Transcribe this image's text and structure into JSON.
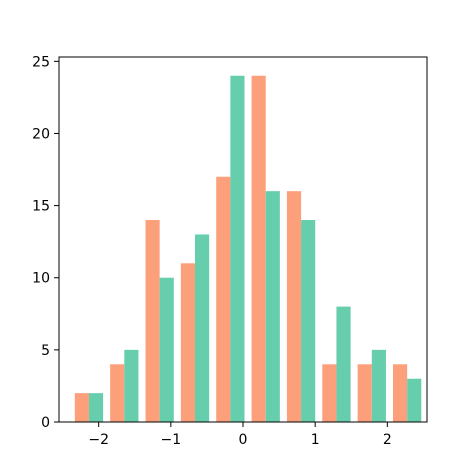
{
  "chart_data": {
    "type": "bar",
    "title": "",
    "xlabel": "",
    "ylabel": "",
    "grid": false,
    "legend": "none",
    "xlim": [
      -2.55,
      2.55
    ],
    "ylim": [
      0,
      25.3
    ],
    "xticks": [
      -2,
      -1,
      0,
      1,
      2
    ],
    "xtick_labels": [
      "−2",
      "−1",
      "0",
      "1",
      "2"
    ],
    "yticks": [
      0,
      5,
      10,
      15,
      20,
      25
    ],
    "ytick_labels": [
      "0",
      "5",
      "10",
      "15",
      "20",
      "25"
    ],
    "bin_edges": [
      -2.38,
      -1.89,
      -1.4,
      -0.91,
      -0.42,
      0.07,
      0.56,
      1.05,
      1.54,
      2.03,
      2.52
    ],
    "series": [
      {
        "color": "#fc9f7b",
        "values": [
          2,
          4,
          14,
          11,
          17,
          24,
          16,
          4,
          4,
          4
        ]
      },
      {
        "color": "#66ceac",
        "values": [
          2,
          5,
          10,
          13,
          24,
          16,
          14,
          8,
          5,
          3
        ]
      }
    ]
  }
}
